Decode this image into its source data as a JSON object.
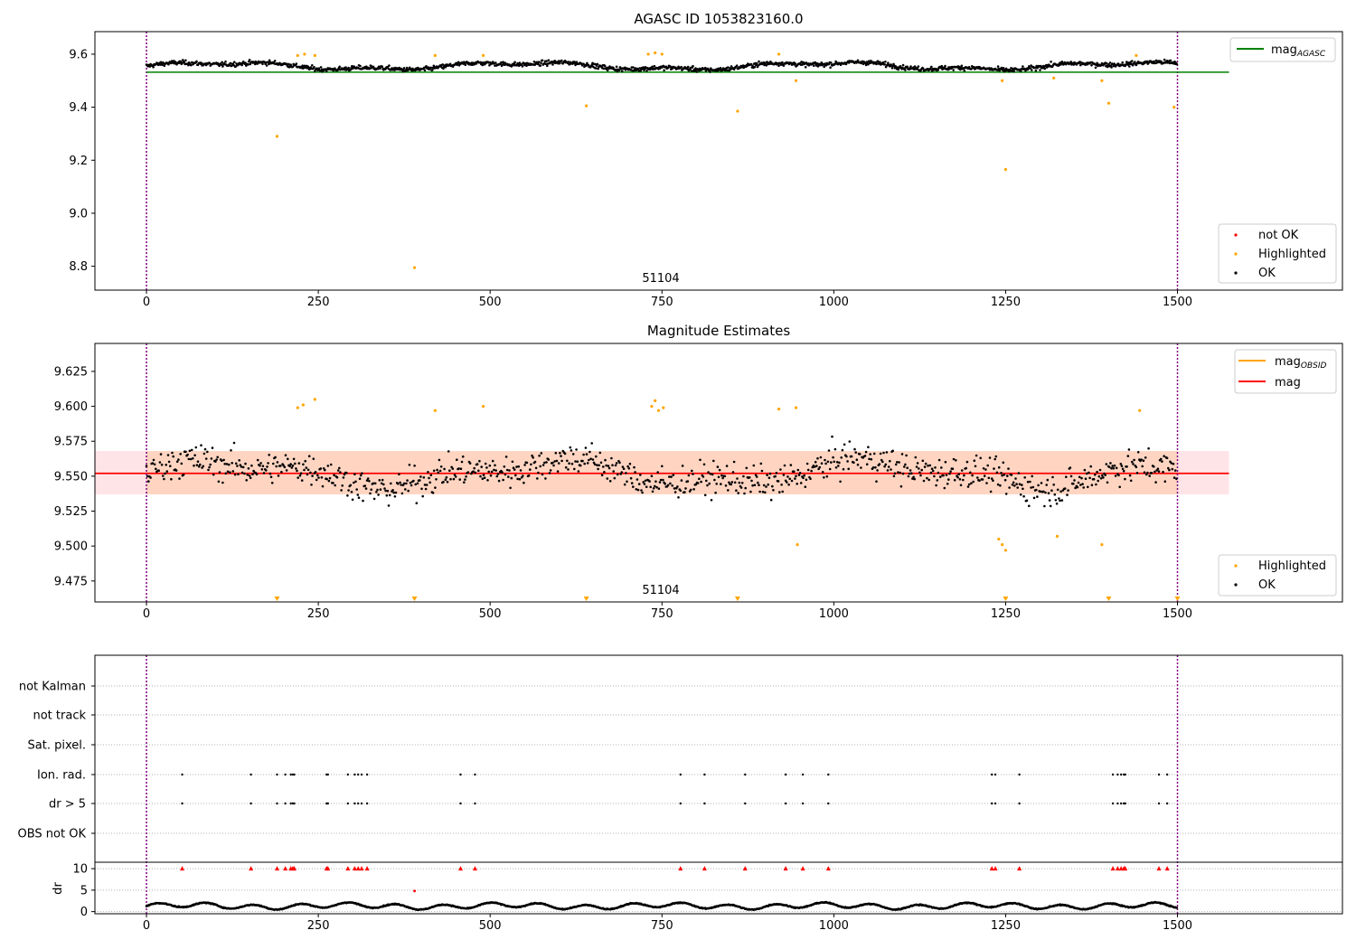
{
  "panel1": {
    "title": "AGASC ID 1053823160.0",
    "obsid_label": "51104",
    "x_ticks": [
      0,
      250,
      500,
      750,
      1000,
      1250,
      1500
    ],
    "y_ticks": [
      8.8,
      9.0,
      9.2,
      9.4,
      9.6
    ],
    "y_tick_labels": [
      "8.8",
      "9.0",
      "9.2",
      "9.4",
      "9.6"
    ],
    "legend_top": [
      {
        "label": "mag",
        "sub": "AGASC",
        "color": "#008000"
      }
    ],
    "legend_bottom": [
      {
        "label": "not OK",
        "color": "#ff0000"
      },
      {
        "label": "Highlighted",
        "color": "#ffa500"
      },
      {
        "label": "OK",
        "color": "#000000"
      }
    ]
  },
  "panel2": {
    "title": "Magnitude Estimates",
    "obsid_label": "51104",
    "x_ticks": [
      0,
      250,
      500,
      750,
      1000,
      1250,
      1500
    ],
    "y_ticks": [
      9.475,
      9.5,
      9.525,
      9.55,
      9.575,
      9.6,
      9.625
    ],
    "y_tick_labels": [
      "9.475",
      "9.500",
      "9.525",
      "9.550",
      "9.575",
      "9.600",
      "9.625"
    ],
    "legend_top": [
      {
        "label": "mag",
        "sub": "OBSID",
        "color": "#ffa500"
      },
      {
        "label": "mag",
        "sub": "",
        "color": "#ff0000"
      }
    ],
    "legend_bottom": [
      {
        "label": "Highlighted",
        "color": "#ffa500"
      },
      {
        "label": "OK",
        "color": "#000000"
      }
    ]
  },
  "panel3": {
    "flag_rows": [
      "not Kalman",
      "not track",
      "Sat. pixel.",
      "Ion. rad.",
      "dr > 5",
      "OBS not OK"
    ],
    "x_ticks": [
      0,
      250,
      500,
      750,
      1000,
      1250,
      1500
    ]
  },
  "panel4": {
    "ylabel": "dr",
    "y_ticks": [
      0,
      5,
      10
    ],
    "y_tick_labels": [
      "0",
      "5",
      "10"
    ]
  },
  "colors": {
    "agasc_line": "#008000",
    "mag_line": "#ff0000",
    "band_fill": "#ffd5c2",
    "band_outer": "#ffe4e7",
    "highlight": "#ffa500",
    "not_ok": "#ff0000",
    "ok": "#000000",
    "obs_edge": "#800080"
  },
  "chart_data": [
    {
      "type": "scatter",
      "title": "AGASC ID 1053823160.0",
      "xlim": [
        -75,
        1740
      ],
      "ylim": [
        8.71,
        9.685
      ],
      "mag_agasc": 9.532,
      "obs_start": 0,
      "obs_stop": 1500,
      "ok_series": {
        "name": "OK",
        "x_range": [
          0,
          1500
        ],
        "n_points": 1500,
        "y_baseline": 9.555
      },
      "highlighted": {
        "name": "Highlighted",
        "x": [
          190,
          220,
          230,
          245,
          390,
          420,
          490,
          640,
          730,
          740,
          750,
          860,
          920,
          945,
          1245,
          1250,
          1320,
          1390,
          1400,
          1440,
          1495
        ],
        "y": [
          9.29,
          9.595,
          9.6,
          9.595,
          8.795,
          9.595,
          9.595,
          9.405,
          9.6,
          9.605,
          9.6,
          9.385,
          9.6,
          9.5,
          9.5,
          9.165,
          9.51,
          9.5,
          9.415,
          9.595,
          9.4
        ]
      }
    },
    {
      "type": "scatter",
      "title": "Magnitude Estimates",
      "xlim": [
        -75,
        1740
      ],
      "ylim": [
        9.46,
        9.645
      ],
      "mag": 9.552,
      "band_inner": [
        9.537,
        9.568
      ],
      "ok_series": {
        "name": "OK",
        "x_range": [
          0,
          1500
        ],
        "n_points": 1000,
        "y_baseline": 9.552
      },
      "highlighted": {
        "name": "Highlighted",
        "x": [
          220,
          228,
          245,
          420,
          490,
          735,
          740,
          745,
          752,
          920,
          945,
          947,
          1240,
          1245,
          1250,
          1325,
          1390,
          1445
        ],
        "y": [
          9.599,
          9.601,
          9.605,
          9.597,
          9.6,
          9.6,
          9.604,
          9.597,
          9.599,
          9.598,
          9.599,
          9.501,
          9.505,
          9.501,
          9.497,
          9.507,
          9.501,
          9.597
        ]
      },
      "off_scale_markers_x": [
        190,
        390,
        640,
        860,
        1250,
        1400,
        1500
      ]
    },
    {
      "type": "scatter",
      "title": "",
      "flag_events_x": [
        52,
        152,
        190,
        202,
        210,
        213,
        215,
        262,
        264,
        293,
        303,
        308,
        313,
        321,
        457,
        478,
        777,
        812,
        871,
        930,
        955,
        992,
        1230,
        1235,
        1270,
        1406,
        1413,
        1418,
        1422,
        1424,
        1473,
        1485
      ],
      "flags_with_events": [
        "Ion. rad.",
        "dr > 5"
      ],
      "dr_ylim": [
        -0.5,
        11.5
      ],
      "dr_outlier": {
        "x": 390,
        "y": 4.8
      },
      "dr_capped_value": 10
    }
  ]
}
